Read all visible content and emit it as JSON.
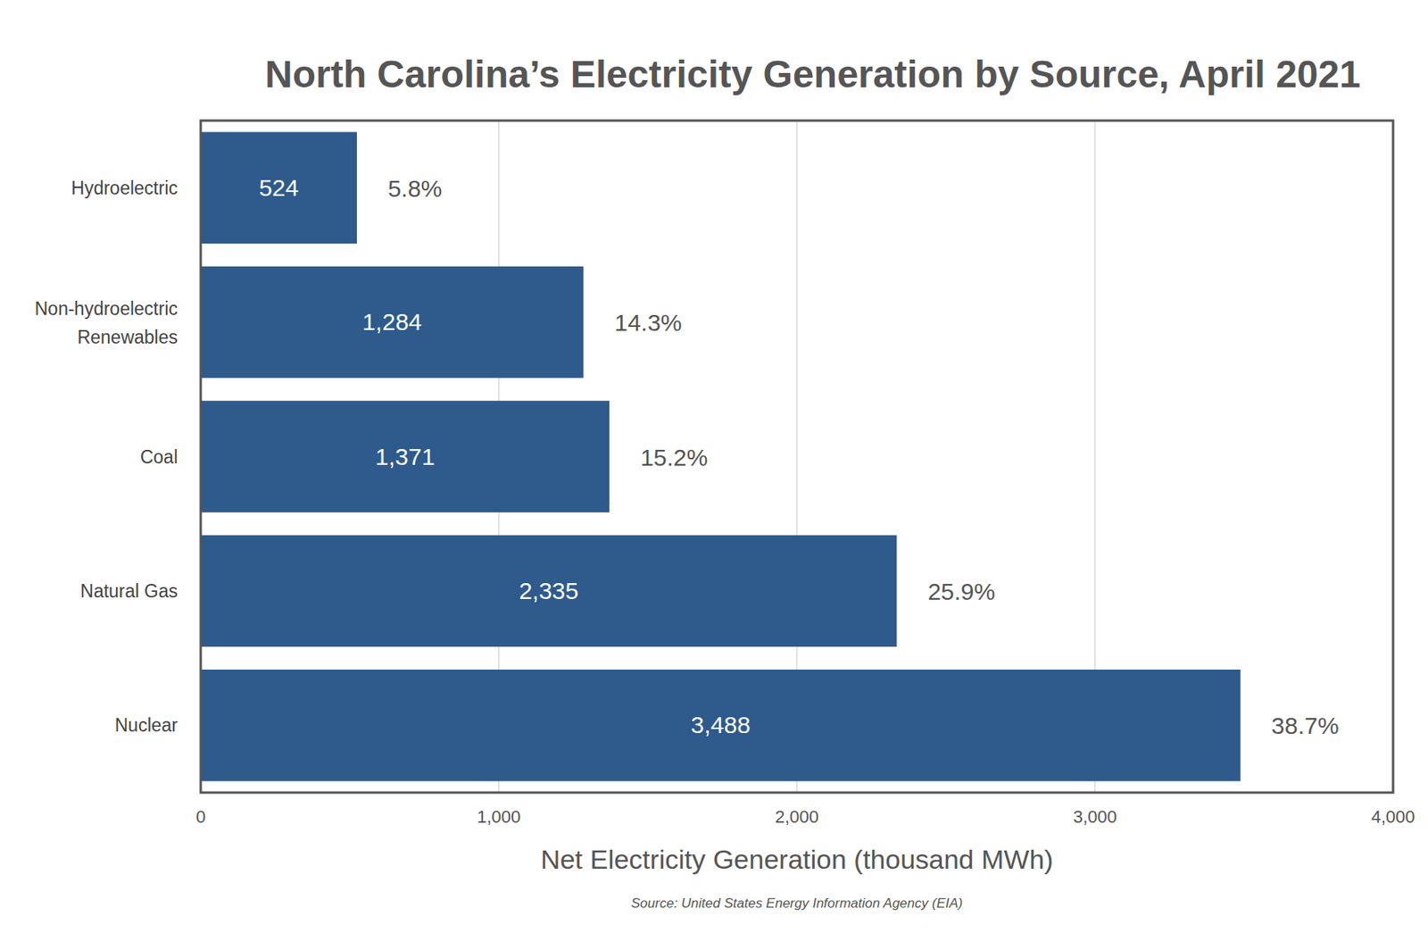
{
  "chart_data": {
    "type": "bar",
    "title": "North Carolina’s Electricity Generation by Source, April 2021",
    "orientation": "horizontal",
    "categories": [
      "Hydroelectric",
      "Non-hydroelectric Renewables",
      "Coal",
      "Natural Gas",
      "Nuclear"
    ],
    "values": [
      524,
      1284,
      1371,
      2335,
      3488
    ],
    "value_labels": [
      "524",
      "1,284",
      "1,371",
      "2,335",
      "3,488"
    ],
    "shares": [
      5.8,
      14.3,
      15.2,
      25.9,
      38.7
    ],
    "share_labels": [
      "5.8%",
      "14.3%",
      "15.2%",
      "25.9%",
      "38.7%"
    ],
    "color": "#2e5a8c",
    "data_labels": true,
    "grid": true,
    "x_label": "Net Electricity Generation (thousand MWh)",
    "xlim": [
      0,
      4000
    ],
    "xticks": [
      0,
      {
        "value": 1000,
        "label": "1,000"
      },
      {
        "value": 2000,
        "label": "2,000"
      },
      {
        "value": 3000,
        "label": "3,000"
      },
      {
        "value": 4000,
        "label": "4,000"
      }
    ],
    "source": "Source: United States Energy Information Agency (EIA)"
  }
}
